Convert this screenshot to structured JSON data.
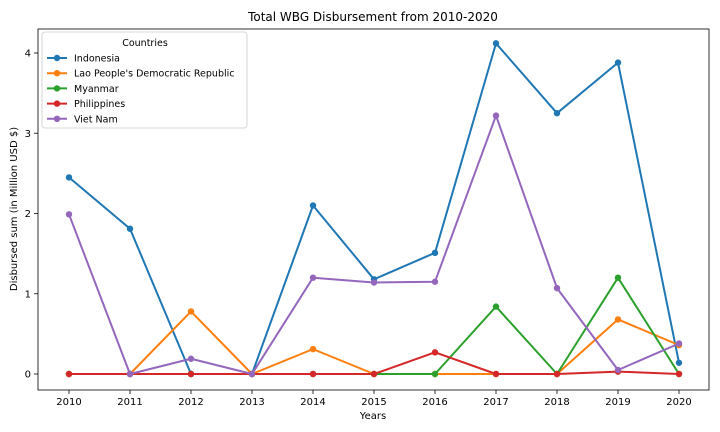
{
  "chart_data": {
    "type": "line",
    "title": "Total WBG Disbursement from 2010-2020",
    "xlabel": "Years",
    "ylabel": "Disbursed sum (in Million USD $)",
    "categories": [
      "2010",
      "2011",
      "2012",
      "2013",
      "2014",
      "2015",
      "2016",
      "2017",
      "2018",
      "2019",
      "2020"
    ],
    "ylim": [
      -0.2,
      4.3
    ],
    "yticks": [
      0,
      1,
      2,
      3,
      4
    ],
    "grid": false,
    "legend": {
      "title": "Countries",
      "placement": "top-left"
    },
    "series": [
      {
        "name": "Indonesia",
        "color": "#1f77b4",
        "values": [
          2.45,
          1.81,
          0.0,
          0.0,
          2.1,
          1.18,
          1.51,
          4.12,
          3.25,
          3.88,
          0.14
        ]
      },
      {
        "name": "Lao People's Democratic Republic",
        "color": "#ff7f0e",
        "values": [
          0.0,
          0.0,
          0.78,
          0.0,
          0.31,
          0.0,
          0.0,
          0.0,
          0.0,
          0.68,
          0.36
        ]
      },
      {
        "name": "Myanmar",
        "color": "#2ca02c",
        "values": [
          0.0,
          0.0,
          0.0,
          0.0,
          0.0,
          0.0,
          0.0,
          0.84,
          0.0,
          1.2,
          0.0
        ]
      },
      {
        "name": "Philippines",
        "color": "#d62728",
        "values": [
          0.0,
          0.0,
          0.0,
          0.0,
          0.0,
          0.0,
          0.27,
          0.0,
          0.0,
          0.03,
          0.0
        ]
      },
      {
        "name": "Viet Nam",
        "color": "#9467bd",
        "values": [
          1.99,
          0.0,
          0.19,
          0.0,
          1.2,
          1.14,
          1.15,
          3.22,
          1.07,
          0.05,
          0.38
        ]
      }
    ]
  }
}
